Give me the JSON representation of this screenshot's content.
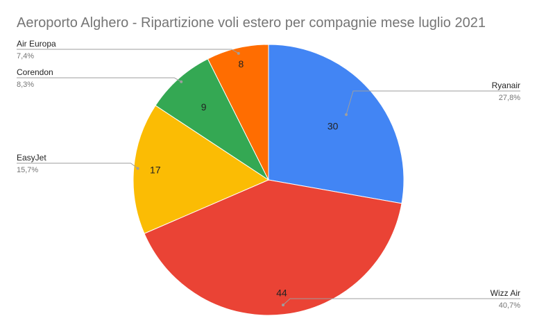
{
  "chart_data": {
    "type": "pie",
    "title": "Aeroporto Alghero - Ripartizione voli estero per compagnie mese luglio 2021",
    "slices": [
      {
        "name": "Ryanair",
        "value": 30,
        "percent": "27,8%",
        "color": "#4285f4"
      },
      {
        "name": "Wizz Air",
        "value": 44,
        "percent": "40,7%",
        "color": "#ea4335"
      },
      {
        "name": "EasyJet",
        "value": 17,
        "percent": "15,7%",
        "color": "#fbbc04"
      },
      {
        "name": "Corendon",
        "value": 9,
        "percent": "8,3%",
        "color": "#34a853"
      },
      {
        "name": "Air Europa",
        "value": 8,
        "percent": "7,4%",
        "color": "#ff6d01"
      }
    ],
    "start": "12 o'clock",
    "direction": "clockwise",
    "legend": "external labels with leader lines"
  }
}
